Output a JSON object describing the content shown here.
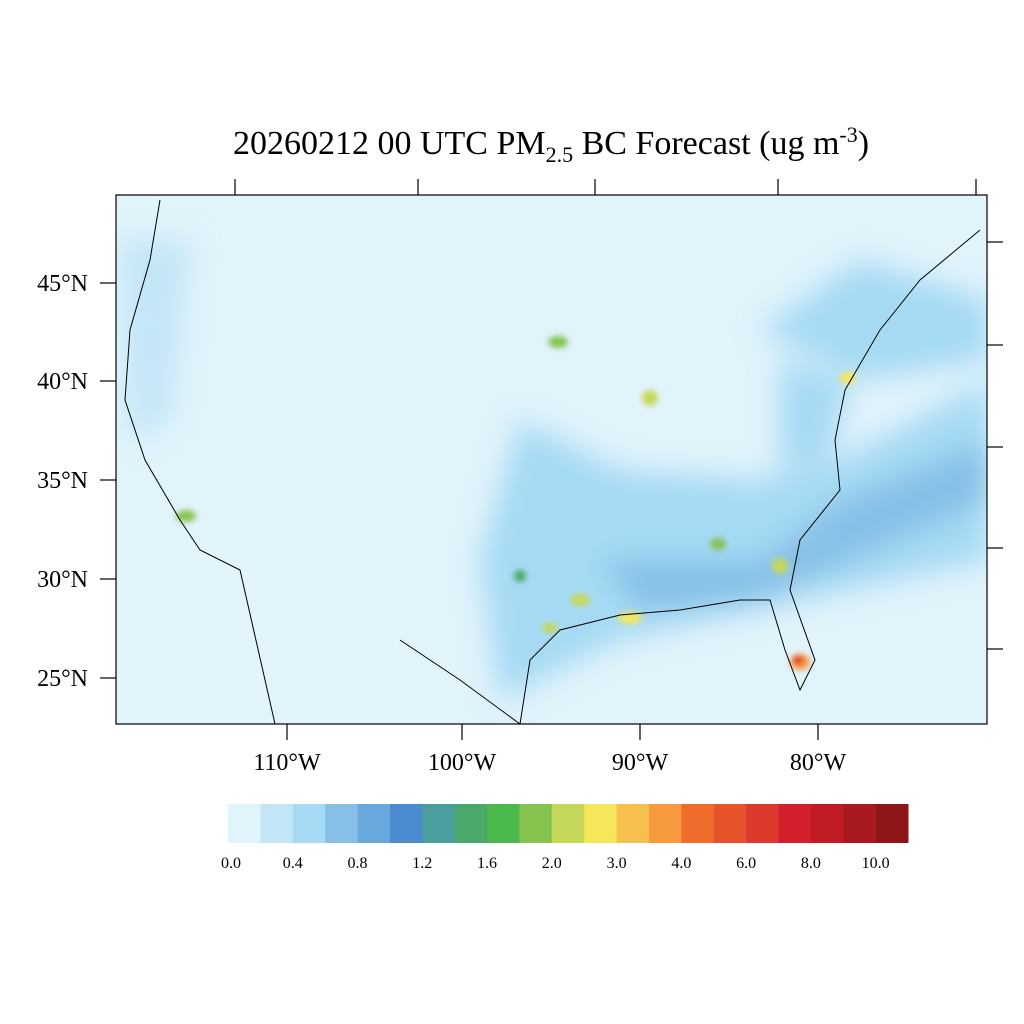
{
  "title_parts": [
    "20260212 00 UTC PM",
    "2.5",
    " BC Forecast (ug m",
    "-3",
    ")"
  ],
  "lat_labels": [
    "45°N",
    "40°N",
    "35°N",
    "30°N",
    "25°N"
  ],
  "lon_labels": [
    "110°W",
    "100°W",
    "90°W",
    "80°W"
  ],
  "colorbar": {
    "colors": [
      "#e1f3fb",
      "#c3e6f7",
      "#a6daf4",
      "#86c0e6",
      "#68a9dd",
      "#4a8ccf",
      "#4a9e9e",
      "#4aa86a",
      "#4ab84a",
      "#86c450",
      "#c6d85a",
      "#f6e65a",
      "#f7bf4e",
      "#f79a40",
      "#f06c2c",
      "#e7542c",
      "#de3a2c",
      "#d4202c",
      "#bf1c24",
      "#a81a20",
      "#8e1618"
    ],
    "labels": [
      "0.0",
      "0.4",
      "0.8",
      "1.2",
      "1.6",
      "2.0",
      "3.0",
      "4.0",
      "6.0",
      "8.0",
      "10.0"
    ]
  }
}
